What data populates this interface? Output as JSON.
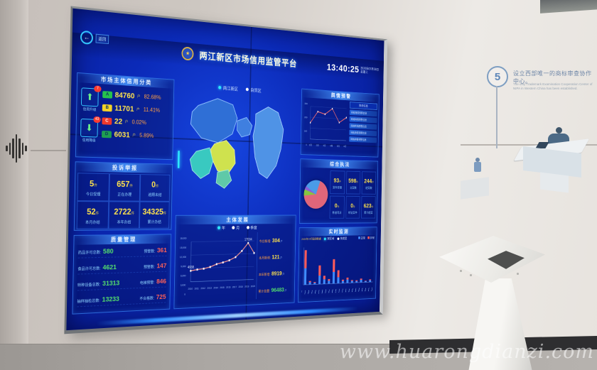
{
  "photo": {
    "watermark": "www.huarongdianzi.com",
    "wall_step": {
      "number": "5",
      "text_cn": "设立西部唯一的商标审查协作中心。",
      "text_en": "The only Trademark Examination Cooperation Center of NIPA in Western China has been established."
    }
  },
  "screen": {
    "back_label": "返回",
    "header": {
      "title": "两江新区市场信用监管平台",
      "time": "13:40:25",
      "date": "2020年07月08日",
      "weekday": "星期三"
    },
    "region_tabs": [
      {
        "label": "两江新区"
      },
      {
        "label": "自贸区"
      }
    ],
    "credit": {
      "title": "市场主体信用分类",
      "up": {
        "label": "信用升级",
        "badge": "7"
      },
      "down": {
        "label": "信用降级",
        "badge": "43"
      },
      "rows": [
        {
          "grade": "A",
          "color": "#27c24c",
          "count": "84760",
          "unit": "户",
          "pct": "82.68%"
        },
        {
          "grade": "B",
          "color": "#f5d327",
          "count": "11701",
          "unit": "户",
          "pct": "11.41%"
        },
        {
          "grade": "C",
          "color": "#f0392b",
          "count": "22",
          "unit": "户",
          "pct": "0.02%"
        },
        {
          "grade": "D",
          "color": "#1e9e50",
          "count": "6031",
          "unit": "户",
          "pct": "5.89%"
        }
      ]
    },
    "complaints": {
      "title": "投诉举报",
      "cells": [
        {
          "value": "5",
          "unit": "件",
          "label": "今日受理"
        },
        {
          "value": "657",
          "unit": "件",
          "label": "正在办理"
        },
        {
          "value": "0",
          "unit": "件",
          "label": "逾期未结"
        },
        {
          "value": "52",
          "unit": "件",
          "label": "本月办结"
        },
        {
          "value": "2722",
          "unit": "件",
          "label": "本年办结"
        },
        {
          "value": "34325",
          "unit": "件",
          "label": "累计办结"
        }
      ]
    },
    "quality": {
      "title": "质量管理",
      "rows": [
        {
          "label": "药品许可总数:",
          "value": "580",
          "label2": "预警数:",
          "value2": "361"
        },
        {
          "label": "食品许可总数:",
          "value": "4621",
          "label2": "预警数:",
          "value2": "147"
        },
        {
          "label": "特种设备总数:",
          "value": "31313",
          "label2": "电梯预警:",
          "value2": "846"
        },
        {
          "label": "抽样抽检总数:",
          "value": "13233",
          "label2": "不合格数:",
          "value2": "725"
        }
      ]
    },
    "development": {
      "title": "主体发展",
      "modes": [
        "年",
        "月",
        "季度"
      ],
      "stats": [
        {
          "label": "今日新增:",
          "value": "304",
          "unit": "户"
        },
        {
          "label": "本月新增:",
          "value": "121",
          "unit": "户"
        },
        {
          "label": "本年新增:",
          "value": "8919",
          "unit": "户"
        },
        {
          "label": "累计总量:",
          "value": "96483",
          "unit": "户"
        }
      ]
    },
    "warning": {
      "title": "舆情预警",
      "list_header": "舆情信息",
      "items": [
        "网络舆情预警信息",
        "网络舆情预警信息",
        "网络舆情预警信息",
        "网络舆情预警信息",
        "网络舆情预警信息"
      ]
    },
    "enforcement": {
      "title": "综合执法",
      "stats": [
        {
          "value": "93",
          "unit": "件",
          "label": "案件受理"
        },
        {
          "value": "598",
          "unit": "件",
          "label": "立案数"
        },
        {
          "value": "244",
          "unit": "件",
          "label": "结案数"
        },
        {
          "value": "0",
          "unit": "件",
          "label": "移送司法"
        },
        {
          "value": "0",
          "unit": "件",
          "label": "听证案件"
        },
        {
          "value": "623",
          "unit": "件",
          "label": "累计结案"
        }
      ]
    },
    "monitor": {
      "title": "实时监测",
      "caption": "2020年07月监测数据",
      "radios": [
        "按区域",
        "按类型"
      ],
      "legend": [
        {
          "label": "正常",
          "color": "#3f8cff"
        },
        {
          "label": "异常",
          "color": "#ff5b5b"
        }
      ]
    }
  },
  "chart_data": [
    {
      "type": "line",
      "title": "主体发展",
      "x": [
        "2010",
        "2011",
        "2012",
        "2013",
        "2014",
        "2015",
        "2016",
        "2017",
        "2018",
        "2019",
        "2020"
      ],
      "values": [
        4938,
        5400,
        5700,
        6400,
        7600,
        8300,
        9200,
        10600,
        13400,
        17034,
        12300
      ],
      "ylim": [
        0,
        18000
      ],
      "yticks": [
        "18,000",
        "15,000",
        "12,000",
        "9,000",
        "6,000",
        "3,000",
        "0"
      ],
      "point_labels": [
        {
          "index": 0,
          "text": "4938"
        },
        {
          "index": 9,
          "text": "17034"
        }
      ],
      "color": "#ef8f8f",
      "grid": true,
      "legend_position": "top"
    },
    {
      "type": "line",
      "title": "舆情预警",
      "x": [
        "1月",
        "2月",
        "3月",
        "4月",
        "5月",
        "6月"
      ],
      "values": [
        150,
        255,
        235,
        290,
        165,
        215
      ],
      "ylim": [
        0,
        300
      ],
      "yticks": [
        "300",
        "200",
        "100",
        "0"
      ],
      "color": "#ff6b6b",
      "grid": true
    },
    {
      "type": "pie",
      "title": "综合执法",
      "slices": [
        {
          "value": 68,
          "color": "#e0667a"
        },
        {
          "value": 7,
          "color": "#86c440"
        },
        {
          "value": 4,
          "color": "#8a5fd6"
        },
        {
          "value": 21,
          "color": "#4a9be8"
        }
      ]
    },
    {
      "type": "bar",
      "stacked": true,
      "title": "实时监测",
      "categories": [
        "",
        "",
        "",
        "",
        "",
        "",
        "",
        "",
        "",
        "",
        "",
        "",
        "",
        "",
        ""
      ],
      "series": [
        {
          "name": "正常",
          "color": "#3f8cff",
          "values": [
            42,
            6,
            4,
            22,
            12,
            8,
            30,
            16,
            6,
            9,
            5,
            4,
            7,
            3,
            5
          ]
        },
        {
          "name": "异常",
          "color": "#ff5b5b",
          "values": [
            46,
            3,
            2,
            26,
            9,
            4,
            33,
            18,
            3,
            5,
            2,
            2,
            3,
            1,
            2
          ]
        }
      ],
      "ylim": [
        0,
        95
      ]
    }
  ]
}
